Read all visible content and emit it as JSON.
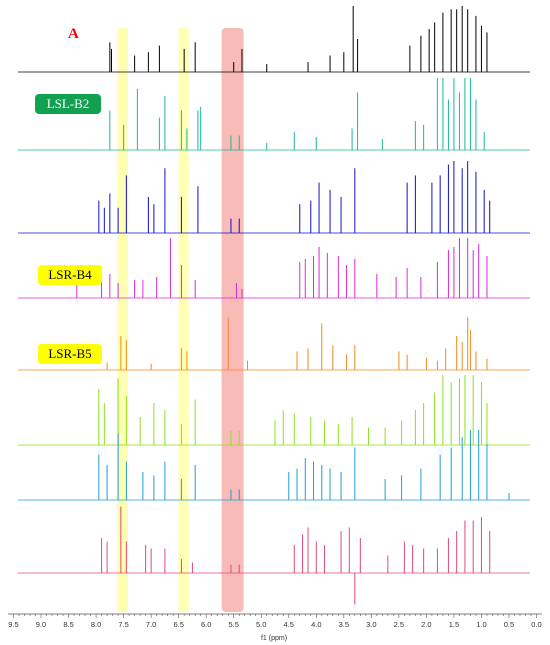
{
  "chart_data": {
    "type": "line",
    "panel_label": "A",
    "xlabel": "f1 (ppm)",
    "xlim": [
      9.6,
      -0.1
    ],
    "x_reversed": true,
    "x_ticks": [
      "9.5",
      "9.0",
      "8.5",
      "8.0",
      "7.5",
      "7.0",
      "6.5",
      "6.0",
      "5.5",
      "5.0",
      "4.5",
      "4.0",
      "3.5",
      "3.0",
      "2.5",
      "2.0",
      "1.5",
      "1.0",
      "0.5",
      "0.0"
    ],
    "highlight_bands": [
      {
        "from": 7.62,
        "to": 7.42,
        "color": "#ffff99"
      },
      {
        "from": 6.5,
        "to": 6.32,
        "color": "#ffff99"
      },
      {
        "from": 5.72,
        "to": 5.32,
        "color": "#f7a4a0"
      }
    ],
    "series": [
      {
        "name": "",
        "color": "#000000",
        "peaks": [
          [
            7.75,
            0.45
          ],
          [
            7.72,
            0.35
          ],
          [
            7.3,
            0.25
          ],
          [
            7.05,
            0.3
          ],
          [
            6.85,
            0.4
          ],
          [
            6.4,
            0.35
          ],
          [
            6.2,
            0.45
          ],
          [
            5.5,
            0.15
          ],
          [
            5.35,
            0.35
          ],
          [
            4.9,
            0.12
          ],
          [
            4.15,
            0.15
          ],
          [
            3.75,
            0.25
          ],
          [
            3.5,
            0.3
          ],
          [
            3.33,
            1.0
          ],
          [
            3.25,
            0.5
          ],
          [
            2.3,
            0.4
          ],
          [
            2.1,
            0.55
          ],
          [
            1.95,
            0.65
          ],
          [
            1.85,
            0.75
          ],
          [
            1.7,
            0.9
          ],
          [
            1.55,
            0.95
          ],
          [
            1.45,
            0.95
          ],
          [
            1.35,
            1.0
          ],
          [
            1.25,
            0.95
          ],
          [
            1.1,
            0.85
          ],
          [
            1.0,
            0.7
          ],
          [
            0.9,
            0.6
          ]
        ]
      },
      {
        "name": "LSL-B2",
        "color": "#1ab79a",
        "peaks": [
          [
            7.75,
            0.55
          ],
          [
            7.5,
            0.35
          ],
          [
            7.25,
            0.85
          ],
          [
            6.85,
            0.45
          ],
          [
            6.75,
            0.75
          ],
          [
            6.45,
            0.55
          ],
          [
            6.35,
            0.3
          ],
          [
            6.15,
            0.55
          ],
          [
            6.1,
            0.6
          ],
          [
            5.55,
            0.2
          ],
          [
            5.4,
            0.2
          ],
          [
            4.9,
            0.1
          ],
          [
            4.4,
            0.25
          ],
          [
            4.0,
            0.18
          ],
          [
            3.35,
            0.3
          ],
          [
            3.25,
            0.8
          ],
          [
            2.8,
            0.15
          ],
          [
            2.2,
            0.4
          ],
          [
            2.05,
            0.35
          ],
          [
            1.8,
            1.0
          ],
          [
            1.7,
            1.0
          ],
          [
            1.6,
            0.7
          ],
          [
            1.5,
            1.0
          ],
          [
            1.4,
            0.8
          ],
          [
            1.3,
            1.0
          ],
          [
            1.2,
            1.0
          ],
          [
            1.1,
            0.7
          ],
          [
            0.95,
            0.25
          ]
        ]
      },
      {
        "name": "",
        "color": "#1010c8",
        "peaks": [
          [
            7.95,
            0.45
          ],
          [
            7.85,
            0.35
          ],
          [
            7.75,
            0.55
          ],
          [
            7.6,
            0.35
          ],
          [
            7.45,
            0.8
          ],
          [
            7.05,
            0.5
          ],
          [
            6.95,
            0.4
          ],
          [
            6.75,
            0.9
          ],
          [
            6.45,
            0.5
          ],
          [
            6.15,
            0.65
          ],
          [
            5.55,
            0.2
          ],
          [
            5.4,
            0.2
          ],
          [
            4.3,
            0.4
          ],
          [
            4.1,
            0.45
          ],
          [
            3.95,
            0.7
          ],
          [
            3.75,
            0.6
          ],
          [
            3.55,
            0.5
          ],
          [
            3.3,
            0.9
          ],
          [
            2.35,
            0.7
          ],
          [
            2.2,
            0.8
          ],
          [
            1.9,
            0.7
          ],
          [
            1.75,
            0.8
          ],
          [
            1.6,
            0.95
          ],
          [
            1.5,
            1.0
          ],
          [
            1.35,
            0.9
          ],
          [
            1.25,
            1.0
          ],
          [
            1.1,
            0.85
          ],
          [
            0.95,
            0.6
          ],
          [
            0.85,
            0.45
          ]
        ]
      },
      {
        "name": "LSR-B4",
        "color": "#d62ad6",
        "peaks": [
          [
            8.35,
            0.25
          ],
          [
            7.9,
            0.35
          ],
          [
            7.75,
            0.4
          ],
          [
            7.6,
            0.25
          ],
          [
            7.3,
            0.3
          ],
          [
            7.15,
            0.3
          ],
          [
            6.9,
            0.35
          ],
          [
            6.65,
            1.0
          ],
          [
            6.45,
            0.55
          ],
          [
            6.2,
            0.3
          ],
          [
            5.45,
            0.25
          ],
          [
            5.35,
            0.15
          ],
          [
            4.3,
            0.6
          ],
          [
            4.2,
            0.65
          ],
          [
            4.05,
            0.7
          ],
          [
            3.95,
            0.85
          ],
          [
            3.8,
            0.75
          ],
          [
            3.6,
            0.7
          ],
          [
            3.45,
            0.55
          ],
          [
            3.3,
            0.65
          ],
          [
            2.9,
            0.4
          ],
          [
            2.55,
            0.35
          ],
          [
            2.35,
            0.5
          ],
          [
            2.1,
            0.35
          ],
          [
            1.8,
            0.6
          ],
          [
            1.6,
            0.8
          ],
          [
            1.5,
            0.85
          ],
          [
            1.4,
            1.0
          ],
          [
            1.25,
            1.0
          ],
          [
            1.15,
            0.8
          ],
          [
            1.05,
            0.9
          ],
          [
            0.9,
            0.7
          ]
        ]
      },
      {
        "name": "LSR-B5",
        "color": "#f18a1c",
        "peaks": [
          [
            7.8,
            0.12
          ],
          [
            7.55,
            0.55
          ],
          [
            7.45,
            0.48
          ],
          [
            7.0,
            0.1
          ],
          [
            6.45,
            0.35
          ],
          [
            6.35,
            0.3
          ],
          [
            5.6,
            0.85
          ],
          [
            5.25,
            0.15
          ],
          [
            4.35,
            0.3
          ],
          [
            4.15,
            0.35
          ],
          [
            3.9,
            0.75
          ],
          [
            3.7,
            0.4
          ],
          [
            3.45,
            0.25
          ],
          [
            3.3,
            0.4
          ],
          [
            2.5,
            0.3
          ],
          [
            2.35,
            0.25
          ],
          [
            2.0,
            0.2
          ],
          [
            1.8,
            0.15
          ],
          [
            1.65,
            0.35
          ],
          [
            1.45,
            0.55
          ],
          [
            1.35,
            0.45
          ],
          [
            1.25,
            0.85
          ],
          [
            1.2,
            0.65
          ],
          [
            1.1,
            0.3
          ],
          [
            0.9,
            0.18
          ]
        ]
      },
      {
        "name": "",
        "color": "#8be01e",
        "peaks": [
          [
            7.95,
            0.8
          ],
          [
            7.85,
            0.6
          ],
          [
            7.6,
            0.95
          ],
          [
            7.45,
            0.7
          ],
          [
            7.2,
            0.4
          ],
          [
            6.95,
            0.6
          ],
          [
            6.75,
            0.5
          ],
          [
            6.45,
            0.3
          ],
          [
            6.2,
            0.65
          ],
          [
            5.55,
            0.2
          ],
          [
            5.4,
            0.2
          ],
          [
            4.75,
            0.35
          ],
          [
            4.6,
            0.5
          ],
          [
            4.4,
            0.45
          ],
          [
            4.1,
            0.4
          ],
          [
            3.85,
            0.35
          ],
          [
            3.6,
            0.3
          ],
          [
            3.35,
            0.4
          ],
          [
            3.05,
            0.25
          ],
          [
            2.75,
            0.25
          ],
          [
            2.45,
            0.35
          ],
          [
            2.2,
            0.5
          ],
          [
            2.05,
            0.6
          ],
          [
            1.85,
            0.75
          ],
          [
            1.7,
            1.0
          ],
          [
            1.55,
            0.9
          ],
          [
            1.4,
            0.95
          ],
          [
            1.3,
            1.0
          ],
          [
            1.15,
            1.0
          ],
          [
            1.0,
            0.9
          ],
          [
            0.9,
            0.6
          ]
        ]
      },
      {
        "name": "",
        "color": "#1e9ed6",
        "peaks": [
          [
            7.95,
            0.65
          ],
          [
            7.8,
            0.5
          ],
          [
            7.6,
            0.95
          ],
          [
            7.45,
            0.55
          ],
          [
            7.15,
            0.4
          ],
          [
            6.95,
            0.35
          ],
          [
            6.75,
            0.55
          ],
          [
            6.45,
            0.3
          ],
          [
            6.2,
            0.5
          ],
          [
            5.55,
            0.15
          ],
          [
            5.4,
            0.15
          ],
          [
            4.5,
            0.4
          ],
          [
            4.35,
            0.45
          ],
          [
            4.2,
            0.6
          ],
          [
            4.05,
            0.55
          ],
          [
            3.9,
            0.5
          ],
          [
            3.75,
            0.45
          ],
          [
            3.55,
            0.4
          ],
          [
            3.3,
            0.75
          ],
          [
            2.75,
            0.3
          ],
          [
            2.45,
            0.35
          ],
          [
            2.1,
            0.45
          ],
          [
            1.75,
            0.65
          ],
          [
            1.55,
            0.75
          ],
          [
            1.35,
            0.9
          ],
          [
            1.2,
            1.0
          ],
          [
            1.05,
            1.0
          ],
          [
            0.9,
            0.8
          ],
          [
            0.5,
            0.1
          ]
        ]
      },
      {
        "name": "",
        "color": "#e04a74",
        "peaks": [
          [
            7.9,
            0.5
          ],
          [
            7.8,
            0.45
          ],
          [
            7.55,
            0.95
          ],
          [
            7.45,
            0.45
          ],
          [
            7.1,
            0.4
          ],
          [
            7.0,
            0.35
          ],
          [
            6.75,
            0.35
          ],
          [
            6.45,
            0.2
          ],
          [
            6.25,
            0.15
          ],
          [
            5.55,
            0.12
          ],
          [
            5.4,
            0.12
          ],
          [
            4.4,
            0.4
          ],
          [
            4.25,
            0.55
          ],
          [
            4.15,
            0.65
          ],
          [
            4.0,
            0.45
          ],
          [
            3.85,
            0.4
          ],
          [
            3.55,
            0.6
          ],
          [
            3.4,
            0.65
          ],
          [
            3.3,
            -0.45
          ],
          [
            3.2,
            0.5
          ],
          [
            2.7,
            0.25
          ],
          [
            2.4,
            0.45
          ],
          [
            2.25,
            0.4
          ],
          [
            2.05,
            0.35
          ],
          [
            1.8,
            0.35
          ],
          [
            1.6,
            0.5
          ],
          [
            1.45,
            0.6
          ],
          [
            1.3,
            0.75
          ],
          [
            1.15,
            0.75
          ],
          [
            1.0,
            0.8
          ],
          [
            0.85,
            0.6
          ]
        ]
      }
    ]
  },
  "sample_tags": {
    "b2": "LSL-B2",
    "b4": "LSR-B4",
    "b5": "LSR-B5"
  }
}
